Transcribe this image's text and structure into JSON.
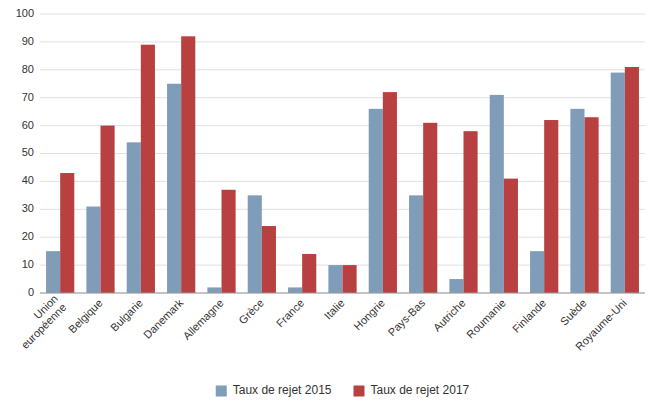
{
  "chart_data": {
    "type": "bar",
    "categories": [
      "Union\neuropéenne",
      "Belgique",
      "Bulgarie",
      "Danemark",
      "Allemagne",
      "Grèce",
      "France",
      "Italie",
      "Hongrie",
      "Pays-Bas",
      "Autriche",
      "Roumanie",
      "Finlande",
      "Suède",
      "Royaume-Uni"
    ],
    "series": [
      {
        "name": "Taux de rejet 2015",
        "color": "#7f9db9",
        "values": [
          15,
          31,
          54,
          75,
          2,
          35,
          2,
          10,
          66,
          35,
          5,
          71,
          15,
          66,
          79
        ]
      },
      {
        "name": "Taux de rejet 2017",
        "color": "#b94040",
        "values": [
          43,
          60,
          89,
          92,
          37,
          24,
          14,
          10,
          72,
          61,
          58,
          41,
          62,
          63,
          81
        ]
      }
    ],
    "ylim": [
      0,
      100
    ],
    "yticks": [
      0,
      10,
      20,
      30,
      40,
      50,
      60,
      70,
      80,
      90,
      100
    ],
    "grid": true,
    "legend": "bottom"
  }
}
